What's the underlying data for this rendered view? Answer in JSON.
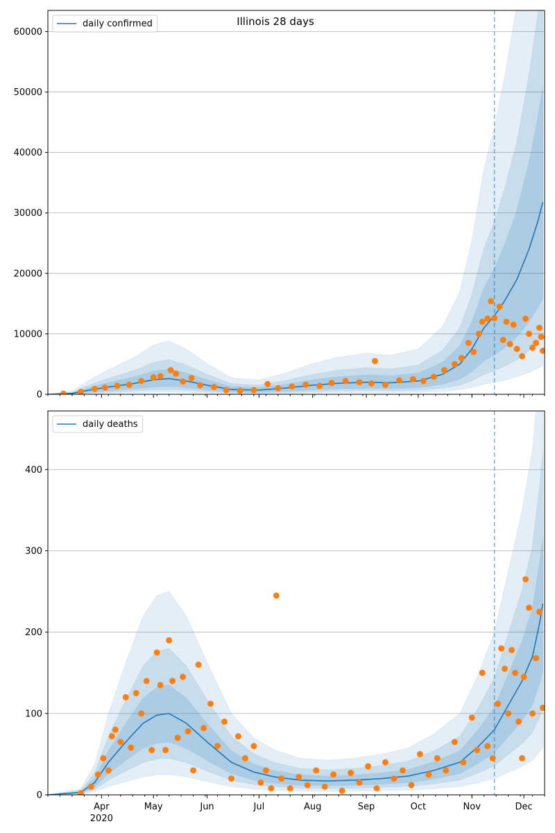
{
  "figure": {
    "title": "Illinois 28 days"
  },
  "chart_data": [
    {
      "type": "line",
      "legend": {
        "label": "daily confirmed",
        "placement": "top-left"
      },
      "ylim": [
        0,
        63500
      ],
      "yticks": [
        0,
        10000,
        20000,
        30000,
        40000,
        50000,
        60000
      ],
      "grid": "y",
      "observed_end": "2020-11-14",
      "median": [
        {
          "date": "2020-03-01",
          "v": 0
        },
        {
          "date": "2020-03-15",
          "v": 150
        },
        {
          "date": "2020-03-25",
          "v": 700
        },
        {
          "date": "2020-04-05",
          "v": 1200
        },
        {
          "date": "2020-04-20",
          "v": 1800
        },
        {
          "date": "2020-05-01",
          "v": 2400
        },
        {
          "date": "2020-05-10",
          "v": 2600
        },
        {
          "date": "2020-05-20",
          "v": 2200
        },
        {
          "date": "2020-06-01",
          "v": 1500
        },
        {
          "date": "2020-06-15",
          "v": 800
        },
        {
          "date": "2020-07-01",
          "v": 700
        },
        {
          "date": "2020-07-15",
          "v": 1000
        },
        {
          "date": "2020-08-01",
          "v": 1500
        },
        {
          "date": "2020-08-15",
          "v": 1800
        },
        {
          "date": "2020-09-01",
          "v": 2000
        },
        {
          "date": "2020-09-15",
          "v": 1900
        },
        {
          "date": "2020-10-01",
          "v": 2200
        },
        {
          "date": "2020-10-15",
          "v": 3300
        },
        {
          "date": "2020-10-25",
          "v": 5000
        },
        {
          "date": "2020-11-01",
          "v": 7500
        },
        {
          "date": "2020-11-08",
          "v": 11000
        },
        {
          "date": "2020-11-14",
          "v": 13000
        },
        {
          "date": "2020-11-20",
          "v": 15500
        },
        {
          "date": "2020-11-27",
          "v": 19000
        },
        {
          "date": "2020-12-04",
          "v": 24000
        },
        {
          "date": "2020-12-09",
          "v": 28500
        },
        {
          "date": "2020-12-12",
          "v": 31800
        }
      ],
      "bands": [
        {
          "lo_scale": 0.15,
          "hi_scale": 3.4,
          "opacity": 0.12
        },
        {
          "lo_scale": 0.3,
          "hi_scale": 2.2,
          "opacity": 0.14
        },
        {
          "lo_scale": 0.5,
          "hi_scale": 1.6,
          "opacity": 0.16
        }
      ],
      "observed": [
        {
          "date": "2020-03-10",
          "v": 100
        },
        {
          "date": "2020-03-20",
          "v": 400
        },
        {
          "date": "2020-03-28",
          "v": 900
        },
        {
          "date": "2020-04-03",
          "v": 1100
        },
        {
          "date": "2020-04-10",
          "v": 1400
        },
        {
          "date": "2020-04-17",
          "v": 1600
        },
        {
          "date": "2020-04-24",
          "v": 2200
        },
        {
          "date": "2020-05-01",
          "v": 2800
        },
        {
          "date": "2020-05-05",
          "v": 3000
        },
        {
          "date": "2020-05-11",
          "v": 4000
        },
        {
          "date": "2020-05-14",
          "v": 3400
        },
        {
          "date": "2020-05-18",
          "v": 2100
        },
        {
          "date": "2020-05-23",
          "v": 2700
        },
        {
          "date": "2020-05-28",
          "v": 1500
        },
        {
          "date": "2020-06-05",
          "v": 1200
        },
        {
          "date": "2020-06-12",
          "v": 700
        },
        {
          "date": "2020-06-20",
          "v": 600
        },
        {
          "date": "2020-06-28",
          "v": 700
        },
        {
          "date": "2020-07-06",
          "v": 1700
        },
        {
          "date": "2020-07-12",
          "v": 1000
        },
        {
          "date": "2020-07-20",
          "v": 1300
        },
        {
          "date": "2020-07-28",
          "v": 1600
        },
        {
          "date": "2020-08-05",
          "v": 1400
        },
        {
          "date": "2020-08-12",
          "v": 1900
        },
        {
          "date": "2020-08-20",
          "v": 2200
        },
        {
          "date": "2020-08-28",
          "v": 2000
        },
        {
          "date": "2020-09-04",
          "v": 1800
        },
        {
          "date": "2020-09-06",
          "v": 5500
        },
        {
          "date": "2020-09-12",
          "v": 1600
        },
        {
          "date": "2020-09-20",
          "v": 2300
        },
        {
          "date": "2020-09-28",
          "v": 2500
        },
        {
          "date": "2020-10-04",
          "v": 2200
        },
        {
          "date": "2020-10-10",
          "v": 2900
        },
        {
          "date": "2020-10-16",
          "v": 4000
        },
        {
          "date": "2020-10-22",
          "v": 5000
        },
        {
          "date": "2020-10-26",
          "v": 6000
        },
        {
          "date": "2020-10-30",
          "v": 8500
        },
        {
          "date": "2020-11-02",
          "v": 7000
        },
        {
          "date": "2020-11-05",
          "v": 10000
        },
        {
          "date": "2020-11-07",
          "v": 12000
        },
        {
          "date": "2020-11-10",
          "v": 12500
        },
        {
          "date": "2020-11-12",
          "v": 15400
        },
        {
          "date": "2020-11-14",
          "v": 12600
        },
        {
          "date": "2020-11-17",
          "v": 14500
        },
        {
          "date": "2020-11-19",
          "v": 9000
        },
        {
          "date": "2020-11-21",
          "v": 12000
        },
        {
          "date": "2020-11-23",
          "v": 8300
        },
        {
          "date": "2020-11-25",
          "v": 11500
        },
        {
          "date": "2020-11-27",
          "v": 7500
        },
        {
          "date": "2020-11-30",
          "v": 6300
        },
        {
          "date": "2020-12-02",
          "v": 12500
        },
        {
          "date": "2020-12-04",
          "v": 10000
        },
        {
          "date": "2020-12-06",
          "v": 7700
        },
        {
          "date": "2020-12-08",
          "v": 8500
        },
        {
          "date": "2020-12-10",
          "v": 11000
        },
        {
          "date": "2020-12-11",
          "v": 9500
        },
        {
          "date": "2020-12-12",
          "v": 7200
        }
      ]
    },
    {
      "type": "line",
      "legend": {
        "label": "daily deaths",
        "placement": "top-left"
      },
      "ylim": [
        0,
        472
      ],
      "yticks": [
        0,
        100,
        200,
        300,
        400
      ],
      "grid": "y",
      "observed_end": "2020-11-14",
      "median": [
        {
          "date": "2020-03-01",
          "v": 0
        },
        {
          "date": "2020-03-20",
          "v": 3
        },
        {
          "date": "2020-03-28",
          "v": 15
        },
        {
          "date": "2020-04-05",
          "v": 40
        },
        {
          "date": "2020-04-15",
          "v": 65
        },
        {
          "date": "2020-04-25",
          "v": 88
        },
        {
          "date": "2020-05-03",
          "v": 98
        },
        {
          "date": "2020-05-10",
          "v": 100
        },
        {
          "date": "2020-05-20",
          "v": 88
        },
        {
          "date": "2020-06-01",
          "v": 65
        },
        {
          "date": "2020-06-15",
          "v": 40
        },
        {
          "date": "2020-06-28",
          "v": 28
        },
        {
          "date": "2020-07-10",
          "v": 22
        },
        {
          "date": "2020-07-25",
          "v": 18
        },
        {
          "date": "2020-08-10",
          "v": 17
        },
        {
          "date": "2020-08-25",
          "v": 18
        },
        {
          "date": "2020-09-10",
          "v": 20
        },
        {
          "date": "2020-09-25",
          "v": 23
        },
        {
          "date": "2020-10-10",
          "v": 30
        },
        {
          "date": "2020-10-25",
          "v": 40
        },
        {
          "date": "2020-11-05",
          "v": 60
        },
        {
          "date": "2020-11-14",
          "v": 80
        },
        {
          "date": "2020-11-22",
          "v": 110
        },
        {
          "date": "2020-11-30",
          "v": 140
        },
        {
          "date": "2020-12-06",
          "v": 170
        },
        {
          "date": "2020-12-10",
          "v": 210
        },
        {
          "date": "2020-12-12",
          "v": 235
        }
      ],
      "bands": [
        {
          "lo_scale": 0.25,
          "hi_scale": 2.5,
          "opacity": 0.12
        },
        {
          "lo_scale": 0.45,
          "hi_scale": 1.8,
          "opacity": 0.14
        },
        {
          "lo_scale": 0.65,
          "hi_scale": 1.35,
          "opacity": 0.16
        }
      ],
      "observed": [
        {
          "date": "2020-03-20",
          "v": 2
        },
        {
          "date": "2020-03-26",
          "v": 10
        },
        {
          "date": "2020-03-30",
          "v": 25
        },
        {
          "date": "2020-04-02",
          "v": 45
        },
        {
          "date": "2020-04-05",
          "v": 30
        },
        {
          "date": "2020-04-07",
          "v": 72
        },
        {
          "date": "2020-04-09",
          "v": 80
        },
        {
          "date": "2020-04-12",
          "v": 65
        },
        {
          "date": "2020-04-15",
          "v": 120
        },
        {
          "date": "2020-04-18",
          "v": 58
        },
        {
          "date": "2020-04-21",
          "v": 125
        },
        {
          "date": "2020-04-24",
          "v": 100
        },
        {
          "date": "2020-04-27",
          "v": 140
        },
        {
          "date": "2020-04-30",
          "v": 55
        },
        {
          "date": "2020-05-03",
          "v": 175
        },
        {
          "date": "2020-05-05",
          "v": 135
        },
        {
          "date": "2020-05-08",
          "v": 55
        },
        {
          "date": "2020-05-10",
          "v": 190
        },
        {
          "date": "2020-05-12",
          "v": 140
        },
        {
          "date": "2020-05-15",
          "v": 70
        },
        {
          "date": "2020-05-18",
          "v": 145
        },
        {
          "date": "2020-05-21",
          "v": 78
        },
        {
          "date": "2020-05-24",
          "v": 30
        },
        {
          "date": "2020-05-27",
          "v": 160
        },
        {
          "date": "2020-05-30",
          "v": 82
        },
        {
          "date": "2020-06-03",
          "v": 112
        },
        {
          "date": "2020-06-07",
          "v": 60
        },
        {
          "date": "2020-06-11",
          "v": 90
        },
        {
          "date": "2020-06-15",
          "v": 20
        },
        {
          "date": "2020-06-19",
          "v": 72
        },
        {
          "date": "2020-06-23",
          "v": 45
        },
        {
          "date": "2020-06-28",
          "v": 60
        },
        {
          "date": "2020-07-02",
          "v": 15
        },
        {
          "date": "2020-07-05",
          "v": 30
        },
        {
          "date": "2020-07-08",
          "v": 8
        },
        {
          "date": "2020-07-11",
          "v": 245
        },
        {
          "date": "2020-07-14",
          "v": 20
        },
        {
          "date": "2020-07-19",
          "v": 8
        },
        {
          "date": "2020-07-24",
          "v": 22
        },
        {
          "date": "2020-07-29",
          "v": 12
        },
        {
          "date": "2020-08-03",
          "v": 30
        },
        {
          "date": "2020-08-08",
          "v": 10
        },
        {
          "date": "2020-08-13",
          "v": 25
        },
        {
          "date": "2020-08-18",
          "v": 5
        },
        {
          "date": "2020-08-23",
          "v": 27
        },
        {
          "date": "2020-08-28",
          "v": 15
        },
        {
          "date": "2020-09-02",
          "v": 35
        },
        {
          "date": "2020-09-07",
          "v": 8
        },
        {
          "date": "2020-09-12",
          "v": 40
        },
        {
          "date": "2020-09-17",
          "v": 20
        },
        {
          "date": "2020-09-22",
          "v": 30
        },
        {
          "date": "2020-09-27",
          "v": 12
        },
        {
          "date": "2020-10-02",
          "v": 50
        },
        {
          "date": "2020-10-07",
          "v": 25
        },
        {
          "date": "2020-10-12",
          "v": 45
        },
        {
          "date": "2020-10-17",
          "v": 30
        },
        {
          "date": "2020-10-22",
          "v": 65
        },
        {
          "date": "2020-10-27",
          "v": 40
        },
        {
          "date": "2020-11-01",
          "v": 95
        },
        {
          "date": "2020-11-04",
          "v": 55
        },
        {
          "date": "2020-11-07",
          "v": 150
        },
        {
          "date": "2020-11-10",
          "v": 60
        },
        {
          "date": "2020-11-13",
          "v": 45
        },
        {
          "date": "2020-11-16",
          "v": 112
        },
        {
          "date": "2020-11-18",
          "v": 180
        },
        {
          "date": "2020-11-20",
          "v": 155
        },
        {
          "date": "2020-11-22",
          "v": 100
        },
        {
          "date": "2020-11-24",
          "v": 178
        },
        {
          "date": "2020-11-26",
          "v": 150
        },
        {
          "date": "2020-11-28",
          "v": 90
        },
        {
          "date": "2020-11-30",
          "v": 45
        },
        {
          "date": "2020-12-01",
          "v": 145
        },
        {
          "date": "2020-12-02",
          "v": 265
        },
        {
          "date": "2020-12-04",
          "v": 230
        },
        {
          "date": "2020-12-06",
          "v": 100
        },
        {
          "date": "2020-12-08",
          "v": 168
        },
        {
          "date": "2020-12-10",
          "v": 225
        },
        {
          "date": "2020-12-12",
          "v": 107
        }
      ]
    }
  ],
  "xaxis": {
    "min": "2020-03-01",
    "max": "2020-12-13",
    "ticks": [
      {
        "date": "2020-04-01",
        "label": "Apr",
        "sub": "2020"
      },
      {
        "date": "2020-05-01",
        "label": "May",
        "sub": ""
      },
      {
        "date": "2020-06-01",
        "label": "Jun",
        "sub": ""
      },
      {
        "date": "2020-07-01",
        "label": "Jul",
        "sub": ""
      },
      {
        "date": "2020-08-01",
        "label": "Aug",
        "sub": ""
      },
      {
        "date": "2020-09-01",
        "label": "Sep",
        "sub": ""
      },
      {
        "date": "2020-10-01",
        "label": "Oct",
        "sub": ""
      },
      {
        "date": "2020-11-01",
        "label": "Nov",
        "sub": ""
      },
      {
        "date": "2020-12-01",
        "label": "Dec",
        "sub": ""
      }
    ]
  },
  "colors": {
    "median": "#1f77b4",
    "band": "#1f77b4",
    "observed": "#ff7f0e",
    "cutoff": "#1f77b4"
  }
}
